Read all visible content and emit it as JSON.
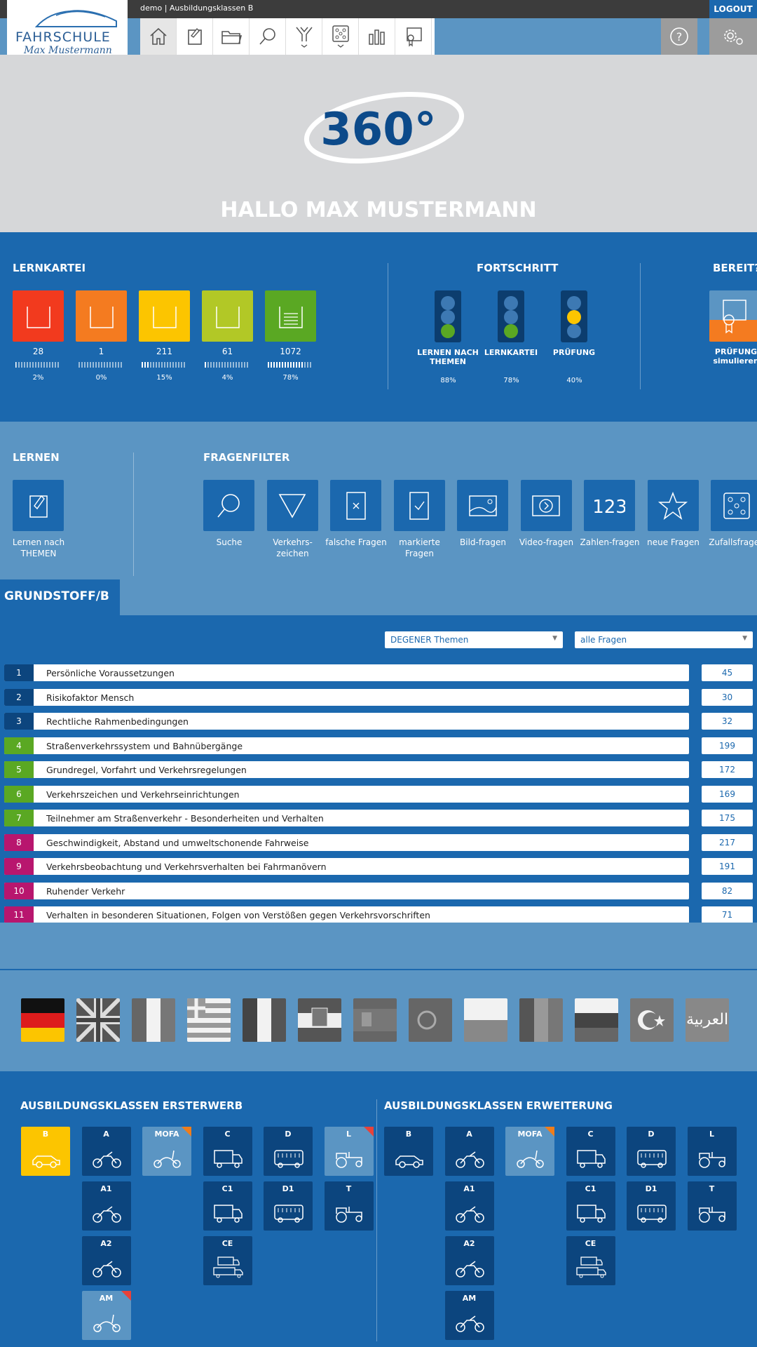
{
  "topbar": {
    "context": "demo | Ausbildungsklassen B",
    "logout": "LOGOUT"
  },
  "logo": {
    "line1": "FAHRSCHULE",
    "line2": "Max Mustermann"
  },
  "hero": {
    "badge": "360°",
    "greeting": "HALLO MAX MUSTERMANN"
  },
  "lernkartei": {
    "heading": "LERNKARTEI",
    "boxes": [
      {
        "count": "28",
        "pct": "2%",
        "color": "#f23a1e",
        "fill": 0.02
      },
      {
        "count": "1",
        "pct": "0%",
        "color": "#f47b20",
        "fill": 0.0
      },
      {
        "count": "211",
        "pct": "15%",
        "color": "#fcc500",
        "fill": 0.15
      },
      {
        "count": "61",
        "pct": "4%",
        "color": "#b2c826",
        "fill": 0.04
      },
      {
        "count": "1072",
        "pct": "78%",
        "color": "#5aa823",
        "fill": 0.78
      }
    ]
  },
  "fortschritt": {
    "heading": "FORTSCHRITT",
    "items": [
      {
        "label": "LERNEN NACH THEMEN",
        "pct": "88%",
        "light": "green"
      },
      {
        "label": "LERNKARTEI",
        "pct": "78%",
        "light": "green"
      },
      {
        "label": "PRÜFUNG",
        "pct": "40%",
        "light": "yellow"
      }
    ]
  },
  "bereit": {
    "heading": "BEREIT?",
    "label": "PRÜFUNG simulieren"
  },
  "lernen": {
    "heading": "LERNEN",
    "button": "Lernen nach THEMEN"
  },
  "fragenfilter": {
    "heading": "FRAGENFILTER",
    "items": [
      {
        "label": "Suche",
        "icon": "search-icon"
      },
      {
        "label": "Verkehrs-zeichen",
        "icon": "triangle-sign-icon"
      },
      {
        "label": "falsche Fragen",
        "icon": "wrong-card-icon"
      },
      {
        "label": "markierte Fragen",
        "icon": "checked-card-icon"
      },
      {
        "label": "Bild-fragen",
        "icon": "image-icon"
      },
      {
        "label": "Video-fragen",
        "icon": "video-icon"
      },
      {
        "label": "Zahlen-fragen",
        "icon": "numbers-icon"
      },
      {
        "label": "neue Fragen",
        "icon": "star-icon"
      },
      {
        "label": "Zufallsfragen",
        "icon": "dice-icon"
      }
    ]
  },
  "grundstoff": {
    "tab": "GRUNDSTOFF/B",
    "select1": "DEGENER Themen",
    "select2": "alle Fragen",
    "topics": [
      {
        "n": "1",
        "title": "Persönliche Voraussetzungen",
        "count": "45",
        "color": "#0c457e"
      },
      {
        "n": "2",
        "title": "Risikofaktor Mensch",
        "count": "30",
        "color": "#0c457e"
      },
      {
        "n": "3",
        "title": "Rechtliche Rahmenbedingungen",
        "count": "32",
        "color": "#0c457e"
      },
      {
        "n": "4",
        "title": "Straßenverkehrssystem und Bahnübergänge",
        "count": "199",
        "color": "#5aa823"
      },
      {
        "n": "5",
        "title": "Grundregel, Vorfahrt und Verkehrsregelungen",
        "count": "172",
        "color": "#5aa823"
      },
      {
        "n": "6",
        "title": "Verkehrszeichen und Verkehrseinrichtungen",
        "count": "169",
        "color": "#5aa823"
      },
      {
        "n": "7",
        "title": "Teilnehmer am Straßenverkehr - Besonderheiten und Verhalten",
        "count": "175",
        "color": "#5aa823"
      },
      {
        "n": "8",
        "title": "Geschwindigkeit, Abstand und umweltschonende Fahrweise",
        "count": "217",
        "color": "#b8166e"
      },
      {
        "n": "9",
        "title": "Verkehrsbeobachtung und Verkehrsverhalten bei Fahrmanövern",
        "count": "191",
        "color": "#b8166e"
      },
      {
        "n": "10",
        "title": "Ruhender Verkehr",
        "count": "82",
        "color": "#b8166e"
      },
      {
        "n": "11",
        "title": "Verhalten in besonderen Situationen, Folgen von Verstößen gegen Verkehrsvorschriften",
        "count": "71",
        "color": "#b8166e"
      }
    ]
  },
  "languages": {
    "items": [
      "german-flag",
      "english-flag",
      "italian-flag",
      "greek-flag",
      "french-flag",
      "croatian-flag",
      "spanish-flag",
      "portuguese-flag",
      "polish-flag",
      "romanian-flag",
      "russian-flag",
      "turkish-flag",
      "arabic-flag"
    ],
    "arabic_text": "العربية"
  },
  "klassen": {
    "erst_heading": "AUSBILDUNGSKLASSEN ERSTERWERB",
    "erw_heading": "AUSBILDUNGSKLASSEN ERWEITERUNG",
    "labels": {
      "B": "B",
      "A": "A",
      "MOFA": "MOFA",
      "C": "C",
      "D": "D",
      "L": "L",
      "A1": "A1",
      "C1": "C1",
      "D1": "D1",
      "T": "T",
      "A2": "A2",
      "CE": "CE",
      "AM": "AM"
    }
  },
  "colors": {
    "primary": "#1b68ae",
    "light": "#5b95c3",
    "dark": "#0c457e",
    "selected": "#fcc500"
  }
}
